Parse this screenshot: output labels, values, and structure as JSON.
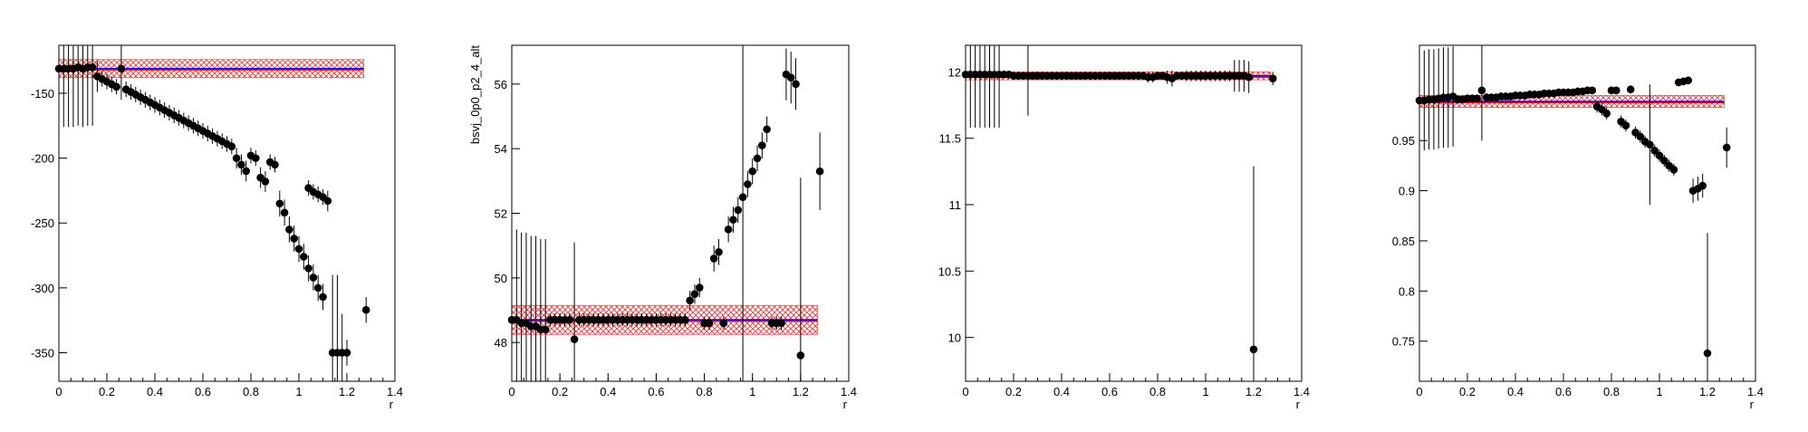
{
  "chart_data": [
    {
      "type": "scatter",
      "ylabel": "",
      "xlabel": "r",
      "xlim": [
        0,
        1.4
      ],
      "ylim": [
        -372,
        -113
      ],
      "xticks": [
        0,
        0.2,
        0.4,
        0.6,
        0.8,
        1,
        1.2,
        1.4
      ],
      "yticks": [
        -150,
        -200,
        -250,
        -300,
        -350
      ],
      "band": {
        "center": -131,
        "half_width": 7,
        "fit": -131
      },
      "points": [
        [
          0.0,
          -131,
          45
        ],
        [
          0.02,
          -131,
          45
        ],
        [
          0.04,
          -131,
          45
        ],
        [
          0.06,
          -131,
          45
        ],
        [
          0.08,
          -130,
          45
        ],
        [
          0.1,
          -131,
          45
        ],
        [
          0.12,
          -130,
          45
        ],
        [
          0.14,
          -130,
          45
        ],
        [
          0.16,
          -137,
          12
        ],
        [
          0.18,
          -139,
          6
        ],
        [
          0.2,
          -141,
          6
        ],
        [
          0.22,
          -143,
          6
        ],
        [
          0.24,
          -145,
          6
        ],
        [
          0.26,
          -131,
          24
        ],
        [
          0.28,
          -147,
          6
        ],
        [
          0.3,
          -149,
          6
        ],
        [
          0.32,
          -151,
          6
        ],
        [
          0.34,
          -153,
          6
        ],
        [
          0.36,
          -155,
          6
        ],
        [
          0.38,
          -157,
          6
        ],
        [
          0.4,
          -159,
          6
        ],
        [
          0.42,
          -161,
          6
        ],
        [
          0.44,
          -163,
          6
        ],
        [
          0.46,
          -165,
          6
        ],
        [
          0.48,
          -167,
          6
        ],
        [
          0.5,
          -169,
          6
        ],
        [
          0.52,
          -171,
          6
        ],
        [
          0.54,
          -173,
          6
        ],
        [
          0.56,
          -175,
          6
        ],
        [
          0.58,
          -177,
          6
        ],
        [
          0.6,
          -179,
          6
        ],
        [
          0.62,
          -181,
          6
        ],
        [
          0.64,
          -183,
          6
        ],
        [
          0.66,
          -185,
          6
        ],
        [
          0.68,
          -187,
          6
        ],
        [
          0.7,
          -189,
          6
        ],
        [
          0.72,
          -191,
          6
        ],
        [
          0.74,
          -200,
          8
        ],
        [
          0.76,
          -205,
          8
        ],
        [
          0.78,
          -210,
          8
        ],
        [
          0.8,
          -198,
          6
        ],
        [
          0.82,
          -200,
          6
        ],
        [
          0.84,
          -215,
          8
        ],
        [
          0.86,
          -218,
          8
        ],
        [
          0.88,
          -203,
          6
        ],
        [
          0.9,
          -205,
          6
        ],
        [
          0.92,
          -235,
          10
        ],
        [
          0.94,
          -242,
          10
        ],
        [
          0.96,
          -255,
          10
        ],
        [
          0.98,
          -262,
          10
        ],
        [
          1.0,
          -270,
          10
        ],
        [
          1.02,
          -276,
          10
        ],
        [
          1.04,
          -285,
          10
        ],
        [
          1.06,
          -292,
          10
        ],
        [
          1.08,
          -300,
          10
        ],
        [
          1.1,
          -307,
          10
        ],
        [
          1.04,
          -223,
          6
        ],
        [
          1.06,
          -226,
          6
        ],
        [
          1.08,
          -228,
          6
        ],
        [
          1.1,
          -230,
          6
        ],
        [
          1.12,
          -233,
          8
        ],
        [
          1.14,
          -350,
          60
        ],
        [
          1.16,
          -350,
          60
        ],
        [
          1.18,
          -350,
          30
        ],
        [
          1.2,
          -350,
          10
        ],
        [
          1.28,
          -317,
          10
        ]
      ]
    },
    {
      "type": "scatter",
      "ylabel": "bsvj_0p0_p2_4_alt",
      "xlabel": "r",
      "xlim": [
        0,
        1.4
      ],
      "ylim": [
        46.8,
        57.2
      ],
      "xticks": [
        0,
        0.2,
        0.4,
        0.6,
        0.8,
        1,
        1.2,
        1.4
      ],
      "yticks": [
        48,
        50,
        52,
        54,
        56
      ],
      "band": {
        "center": 48.7,
        "half_width": 0.45,
        "fit": 48.7
      },
      "points": [
        [
          0.0,
          48.7,
          2.8
        ],
        [
          0.02,
          48.7,
          2.8
        ],
        [
          0.04,
          48.6,
          2.8
        ],
        [
          0.06,
          48.6,
          2.8
        ],
        [
          0.08,
          48.5,
          2.8
        ],
        [
          0.1,
          48.5,
          2.8
        ],
        [
          0.12,
          48.4,
          2.8
        ],
        [
          0.14,
          48.4,
          2.8
        ],
        [
          0.16,
          48.7,
          0.2
        ],
        [
          0.18,
          48.7,
          0.2
        ],
        [
          0.2,
          48.7,
          0.2
        ],
        [
          0.22,
          48.7,
          0.2
        ],
        [
          0.24,
          48.7,
          0.2
        ],
        [
          0.26,
          48.1,
          3.0
        ],
        [
          0.28,
          48.7,
          0.2
        ],
        [
          0.3,
          48.7,
          0.2
        ],
        [
          0.32,
          48.7,
          0.2
        ],
        [
          0.34,
          48.7,
          0.2
        ],
        [
          0.36,
          48.7,
          0.2
        ],
        [
          0.38,
          48.7,
          0.2
        ],
        [
          0.4,
          48.7,
          0.2
        ],
        [
          0.42,
          48.7,
          0.2
        ],
        [
          0.44,
          48.7,
          0.2
        ],
        [
          0.46,
          48.7,
          0.2
        ],
        [
          0.48,
          48.7,
          0.2
        ],
        [
          0.5,
          48.7,
          0.2
        ],
        [
          0.52,
          48.7,
          0.2
        ],
        [
          0.54,
          48.7,
          0.2
        ],
        [
          0.56,
          48.7,
          0.2
        ],
        [
          0.58,
          48.7,
          0.2
        ],
        [
          0.6,
          48.7,
          0.2
        ],
        [
          0.62,
          48.7,
          0.2
        ],
        [
          0.64,
          48.7,
          0.2
        ],
        [
          0.66,
          48.7,
          0.2
        ],
        [
          0.68,
          48.7,
          0.2
        ],
        [
          0.7,
          48.7,
          0.2
        ],
        [
          0.72,
          48.7,
          0.2
        ],
        [
          0.74,
          49.3,
          0.3
        ],
        [
          0.76,
          49.5,
          0.3
        ],
        [
          0.78,
          49.7,
          0.3
        ],
        [
          0.8,
          48.6,
          0.2
        ],
        [
          0.82,
          48.6,
          0.2
        ],
        [
          0.84,
          50.6,
          0.4
        ],
        [
          0.86,
          50.8,
          0.4
        ],
        [
          0.88,
          48.6,
          0.2
        ],
        [
          0.9,
          51.5,
          0.4
        ],
        [
          0.92,
          51.8,
          0.4
        ],
        [
          0.94,
          52.1,
          0.4
        ],
        [
          0.96,
          52.5,
          9.0
        ],
        [
          0.98,
          52.9,
          0.4
        ],
        [
          1.0,
          53.3,
          0.4
        ],
        [
          1.02,
          53.7,
          0.4
        ],
        [
          1.04,
          54.1,
          0.4
        ],
        [
          1.06,
          54.6,
          0.4
        ],
        [
          1.08,
          48.6,
          0.2
        ],
        [
          1.1,
          48.6,
          0.2
        ],
        [
          1.12,
          48.6,
          0.2
        ],
        [
          1.14,
          56.3,
          0.8
        ],
        [
          1.16,
          56.2,
          0.8
        ],
        [
          1.18,
          56.0,
          0.8
        ],
        [
          1.2,
          47.6,
          5.5
        ],
        [
          1.28,
          53.3,
          1.2
        ]
      ]
    },
    {
      "type": "scatter",
      "ylabel": "",
      "xlabel": "r",
      "xlim": [
        0,
        1.4
      ],
      "ylim": [
        9.67,
        12.2
      ],
      "xticks": [
        0,
        0.2,
        0.4,
        0.6,
        0.8,
        1,
        1.2,
        1.4
      ],
      "yticks": [
        12,
        11.5,
        11,
        10.5,
        10
      ],
      "band": {
        "center": 11.97,
        "half_width": 0.03,
        "fit": 11.97
      },
      "points": [
        [
          0.0,
          11.98,
          0.4
        ],
        [
          0.02,
          11.98,
          0.4
        ],
        [
          0.04,
          11.98,
          0.4
        ],
        [
          0.06,
          11.98,
          0.4
        ],
        [
          0.08,
          11.98,
          0.4
        ],
        [
          0.1,
          11.98,
          0.4
        ],
        [
          0.12,
          11.98,
          0.4
        ],
        [
          0.14,
          11.98,
          0.4
        ],
        [
          0.16,
          11.98,
          0.03
        ],
        [
          0.18,
          11.98,
          0.03
        ],
        [
          0.2,
          11.97,
          0.03
        ],
        [
          0.22,
          11.97,
          0.03
        ],
        [
          0.24,
          11.97,
          0.03
        ],
        [
          0.26,
          11.97,
          0.3
        ],
        [
          0.28,
          11.97,
          0.03
        ],
        [
          0.3,
          11.97,
          0.03
        ],
        [
          0.32,
          11.97,
          0.03
        ],
        [
          0.34,
          11.97,
          0.03
        ],
        [
          0.36,
          11.97,
          0.03
        ],
        [
          0.38,
          11.97,
          0.03
        ],
        [
          0.4,
          11.97,
          0.03
        ],
        [
          0.42,
          11.97,
          0.03
        ],
        [
          0.44,
          11.97,
          0.03
        ],
        [
          0.46,
          11.97,
          0.03
        ],
        [
          0.48,
          11.97,
          0.03
        ],
        [
          0.5,
          11.97,
          0.03
        ],
        [
          0.52,
          11.97,
          0.03
        ],
        [
          0.54,
          11.97,
          0.03
        ],
        [
          0.56,
          11.97,
          0.03
        ],
        [
          0.58,
          11.97,
          0.03
        ],
        [
          0.6,
          11.97,
          0.03
        ],
        [
          0.62,
          11.97,
          0.03
        ],
        [
          0.64,
          11.97,
          0.03
        ],
        [
          0.66,
          11.97,
          0.03
        ],
        [
          0.68,
          11.97,
          0.03
        ],
        [
          0.7,
          11.97,
          0.03
        ],
        [
          0.72,
          11.97,
          0.03
        ],
        [
          0.74,
          11.97,
          0.03
        ],
        [
          0.76,
          11.96,
          0.04
        ],
        [
          0.78,
          11.96,
          0.04
        ],
        [
          0.8,
          11.97,
          0.03
        ],
        [
          0.82,
          11.97,
          0.03
        ],
        [
          0.84,
          11.96,
          0.05
        ],
        [
          0.86,
          11.95,
          0.06
        ],
        [
          0.88,
          11.97,
          0.03
        ],
        [
          0.9,
          11.97,
          0.03
        ],
        [
          0.92,
          11.97,
          0.04
        ],
        [
          0.94,
          11.97,
          0.04
        ],
        [
          0.96,
          11.97,
          0.04
        ],
        [
          0.98,
          11.97,
          0.04
        ],
        [
          1.0,
          11.97,
          0.04
        ],
        [
          1.02,
          11.97,
          0.04
        ],
        [
          1.04,
          11.97,
          0.04
        ],
        [
          1.06,
          11.97,
          0.04
        ],
        [
          1.08,
          11.97,
          0.04
        ],
        [
          1.1,
          11.97,
          0.04
        ],
        [
          1.12,
          11.97,
          0.12
        ],
        [
          1.14,
          11.97,
          0.12
        ],
        [
          1.16,
          11.97,
          0.12
        ],
        [
          1.18,
          11.96,
          0.12
        ],
        [
          1.2,
          9.91,
          1.38
        ],
        [
          1.28,
          11.95,
          0.05
        ]
      ]
    },
    {
      "type": "scatter",
      "ylabel": "",
      "xlabel": "r",
      "xlim": [
        0,
        1.4
      ],
      "ylim": [
        0.71,
        1.045
      ],
      "xticks": [
        0,
        0.2,
        0.4,
        0.6,
        0.8,
        1,
        1.2,
        1.4
      ],
      "yticks": [
        0.95,
        0.9,
        0.85,
        0.8,
        0.75
      ],
      "band": {
        "center": 0.989,
        "half_width": 0.006,
        "fit": 0.989
      },
      "points": [
        [
          0.0,
          0.99,
          0.05
        ],
        [
          0.02,
          0.99,
          0.05
        ],
        [
          0.04,
          0.991,
          0.05
        ],
        [
          0.06,
          0.991,
          0.05
        ],
        [
          0.08,
          0.992,
          0.05
        ],
        [
          0.1,
          0.993,
          0.05
        ],
        [
          0.12,
          0.993,
          0.05
        ],
        [
          0.14,
          0.994,
          0.05
        ],
        [
          0.16,
          0.991,
          0.004
        ],
        [
          0.18,
          0.991,
          0.004
        ],
        [
          0.2,
          0.992,
          0.004
        ],
        [
          0.22,
          0.992,
          0.004
        ],
        [
          0.24,
          0.992,
          0.004
        ],
        [
          0.26,
          1.0,
          0.05
        ],
        [
          0.28,
          0.993,
          0.004
        ],
        [
          0.3,
          0.993,
          0.004
        ],
        [
          0.32,
          0.993,
          0.004
        ],
        [
          0.34,
          0.994,
          0.004
        ],
        [
          0.36,
          0.994,
          0.004
        ],
        [
          0.38,
          0.994,
          0.004
        ],
        [
          0.4,
          0.995,
          0.004
        ],
        [
          0.42,
          0.995,
          0.004
        ],
        [
          0.44,
          0.995,
          0.004
        ],
        [
          0.46,
          0.996,
          0.004
        ],
        [
          0.48,
          0.996,
          0.004
        ],
        [
          0.5,
          0.996,
          0.004
        ],
        [
          0.52,
          0.997,
          0.004
        ],
        [
          0.54,
          0.997,
          0.004
        ],
        [
          0.56,
          0.997,
          0.004
        ],
        [
          0.58,
          0.998,
          0.004
        ],
        [
          0.6,
          0.998,
          0.004
        ],
        [
          0.62,
          0.998,
          0.004
        ],
        [
          0.64,
          0.998,
          0.004
        ],
        [
          0.66,
          0.999,
          0.004
        ],
        [
          0.68,
          0.999,
          0.004
        ],
        [
          0.7,
          1.0,
          0.004
        ],
        [
          0.72,
          1.0,
          0.004
        ],
        [
          0.74,
          0.984,
          0.006
        ],
        [
          0.76,
          0.981,
          0.006
        ],
        [
          0.78,
          0.977,
          0.006
        ],
        [
          0.8,
          1.0,
          0.004
        ],
        [
          0.82,
          1.0,
          0.004
        ],
        [
          0.84,
          0.969,
          0.006
        ],
        [
          0.86,
          0.965,
          0.006
        ],
        [
          0.88,
          1.001,
          0.004
        ],
        [
          0.9,
          0.958,
          0.006
        ],
        [
          0.92,
          0.954,
          0.006
        ],
        [
          0.94,
          0.949,
          0.006
        ],
        [
          0.96,
          0.946,
          0.06
        ],
        [
          0.98,
          0.94,
          0.006
        ],
        [
          1.0,
          0.935,
          0.006
        ],
        [
          1.02,
          0.93,
          0.006
        ],
        [
          1.04,
          0.925,
          0.006
        ],
        [
          1.06,
          0.921,
          0.006
        ],
        [
          1.08,
          1.008,
          0.004
        ],
        [
          1.1,
          1.009,
          0.004
        ],
        [
          1.12,
          1.01,
          0.004
        ],
        [
          1.14,
          0.9,
          0.012
        ],
        [
          1.16,
          0.902,
          0.012
        ],
        [
          1.18,
          0.905,
          0.012
        ],
        [
          1.2,
          0.738,
          0.12
        ],
        [
          1.28,
          0.943,
          0.02
        ]
      ]
    }
  ],
  "colors": {
    "points": "#000000",
    "fit_line": "#ff0000",
    "center_line": "#0000ff",
    "band_hatch": "#ff2b2b"
  }
}
